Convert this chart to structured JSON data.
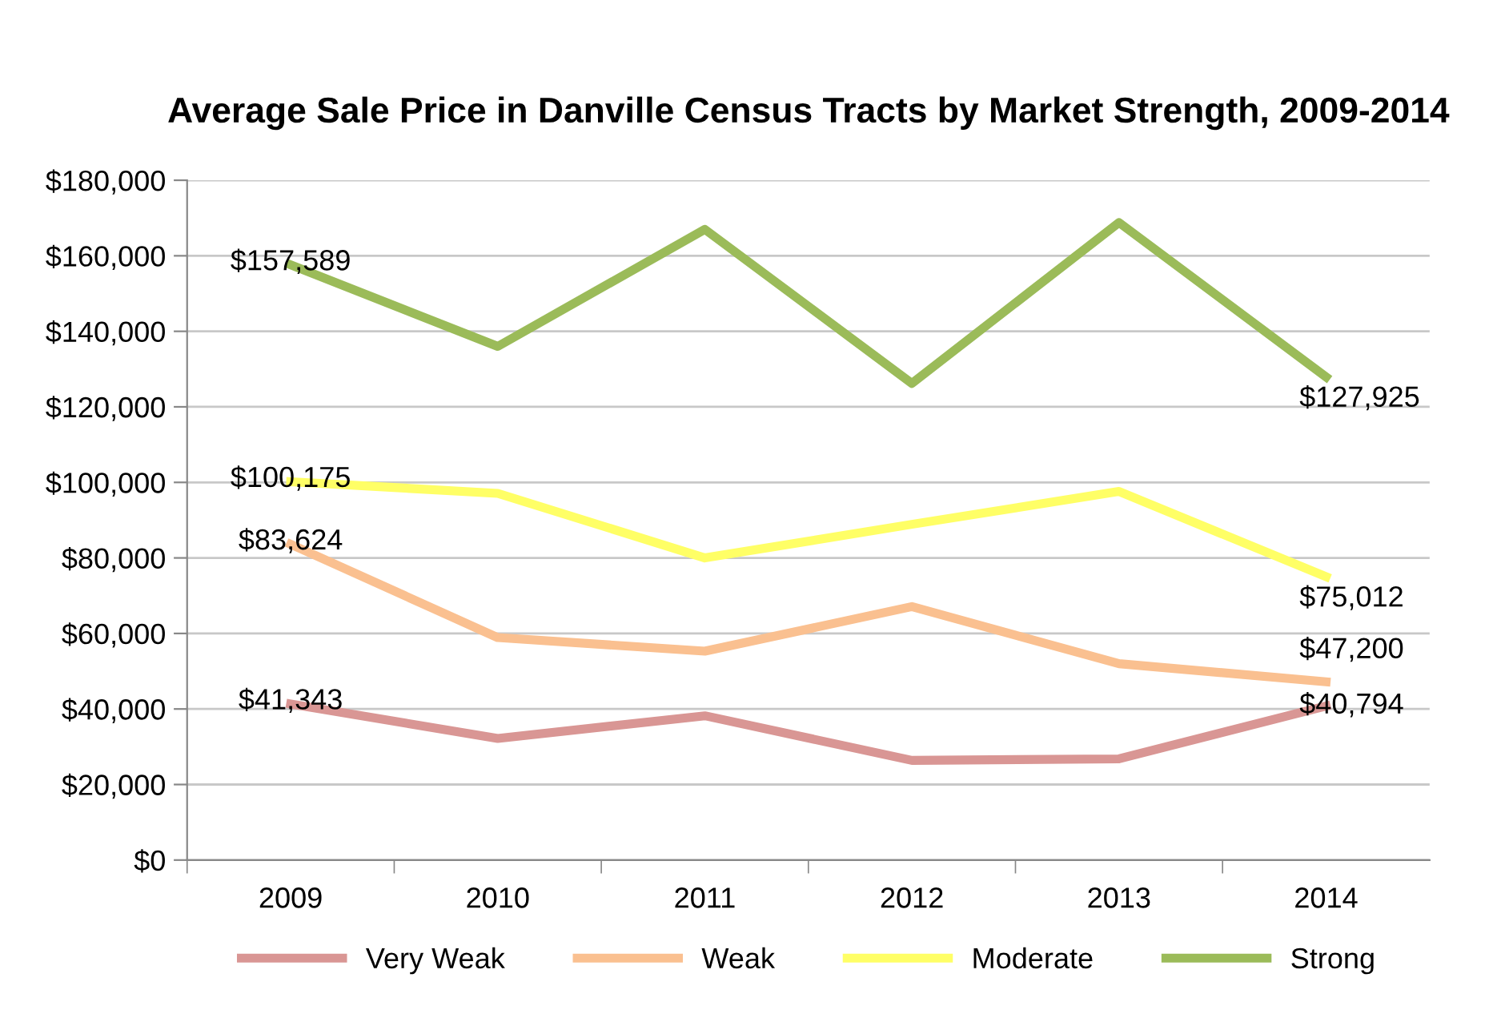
{
  "chart_data": {
    "type": "line",
    "title": "Average Sale Price in Danville Census Tracts by Market Strength, 2009-2014",
    "categories": [
      "2009",
      "2010",
      "2011",
      "2012",
      "2013",
      "2014"
    ],
    "series": [
      {
        "name": "Very Weak",
        "color": "#d99694",
        "values": [
          41343,
          32200,
          38200,
          26400,
          26800,
          40794
        ],
        "value_labels": [
          "$41,343",
          null,
          null,
          null,
          null,
          "$40,794"
        ]
      },
      {
        "name": "Weak",
        "color": "#fac090",
        "values": [
          83624,
          58900,
          55300,
          67100,
          52000,
          47200
        ],
        "value_labels": [
          "$83,624",
          null,
          null,
          null,
          null,
          "$47,200"
        ]
      },
      {
        "name": "Moderate",
        "color": "#ffff66",
        "values": [
          100175,
          97100,
          80000,
          88900,
          97600,
          75012
        ],
        "value_labels": [
          "$100,175",
          null,
          null,
          null,
          null,
          "$75,012"
        ]
      },
      {
        "name": "Strong",
        "color": "#9bbb59",
        "values": [
          157589,
          136000,
          167000,
          126200,
          168800,
          127925
        ],
        "value_labels": [
          "$157,589",
          null,
          null,
          null,
          null,
          "$127,925"
        ]
      }
    ],
    "ylim": [
      0,
      180000
    ],
    "yticks": [
      {
        "value": 0,
        "label": "$0"
      },
      {
        "value": 20000,
        "label": "$20,000"
      },
      {
        "value": 40000,
        "label": "$40,000"
      },
      {
        "value": 60000,
        "label": "$60,000"
      },
      {
        "value": 80000,
        "label": "$80,000"
      },
      {
        "value": 100000,
        "label": "$100,000"
      },
      {
        "value": 120000,
        "label": "$120,000"
      },
      {
        "value": 140000,
        "label": "$140,000"
      },
      {
        "value": 160000,
        "label": "$160,000"
      },
      {
        "value": 180000,
        "label": "$180,000"
      }
    ],
    "grid": "y",
    "legend": "bottom",
    "marker": "none",
    "line_style": "solid"
  }
}
